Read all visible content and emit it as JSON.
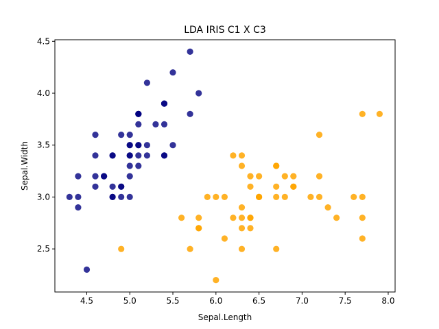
{
  "chart_data": {
    "type": "scatter",
    "title": "LDA IRIS C1 X C3",
    "xlabel": "Sepal.Length",
    "ylabel": "Sepal.Width",
    "xlim": [
      4.13,
      8.08
    ],
    "ylim": [
      2.085,
      4.515
    ],
    "xticks": [
      4.5,
      5.0,
      5.5,
      6.0,
      6.5,
      7.0,
      7.5,
      8.0
    ],
    "yticks": [
      2.5,
      3.0,
      3.5,
      4.0,
      4.5
    ],
    "grid": false,
    "legend": "none",
    "series": [
      {
        "color": "#000080",
        "alpha": 0.8,
        "points": [
          [
            5.1,
            3.5
          ],
          [
            4.9,
            3.0
          ],
          [
            4.7,
            3.2
          ],
          [
            4.6,
            3.1
          ],
          [
            5.0,
            3.6
          ],
          [
            5.4,
            3.9
          ],
          [
            4.6,
            3.4
          ],
          [
            5.0,
            3.4
          ],
          [
            4.4,
            2.9
          ],
          [
            4.9,
            3.1
          ],
          [
            5.4,
            3.7
          ],
          [
            4.8,
            3.4
          ],
          [
            4.8,
            3.0
          ],
          [
            4.3,
            3.0
          ],
          [
            5.8,
            4.0
          ],
          [
            5.7,
            4.4
          ],
          [
            5.4,
            3.9
          ],
          [
            5.1,
            3.5
          ],
          [
            5.7,
            3.8
          ],
          [
            5.1,
            3.8
          ],
          [
            5.4,
            3.4
          ],
          [
            5.1,
            3.7
          ],
          [
            4.6,
            3.6
          ],
          [
            5.1,
            3.3
          ],
          [
            4.8,
            3.4
          ],
          [
            5.0,
            3.0
          ],
          [
            5.0,
            3.4
          ],
          [
            5.2,
            3.5
          ],
          [
            5.2,
            3.4
          ],
          [
            4.7,
            3.2
          ],
          [
            4.8,
            3.1
          ],
          [
            5.4,
            3.4
          ],
          [
            5.2,
            4.1
          ],
          [
            5.5,
            4.2
          ],
          [
            4.9,
            3.1
          ],
          [
            5.0,
            3.2
          ],
          [
            5.5,
            3.5
          ],
          [
            4.9,
            3.6
          ],
          [
            4.4,
            3.0
          ],
          [
            5.1,
            3.4
          ],
          [
            5.0,
            3.5
          ],
          [
            4.5,
            2.3
          ],
          [
            4.4,
            3.2
          ],
          [
            5.0,
            3.5
          ],
          [
            5.1,
            3.8
          ],
          [
            4.8,
            3.0
          ],
          [
            5.1,
            3.8
          ],
          [
            4.6,
            3.2
          ],
          [
            5.3,
            3.7
          ],
          [
            5.0,
            3.3
          ]
        ]
      },
      {
        "color": "#FFA500",
        "alpha": 0.85,
        "points": [
          [
            6.3,
            3.3
          ],
          [
            5.8,
            2.7
          ],
          [
            7.1,
            3.0
          ],
          [
            6.3,
            2.9
          ],
          [
            6.5,
            3.0
          ],
          [
            7.6,
            3.0
          ],
          [
            4.9,
            2.5
          ],
          [
            7.3,
            2.9
          ],
          [
            6.7,
            2.5
          ],
          [
            7.2,
            3.6
          ],
          [
            6.5,
            3.2
          ],
          [
            6.4,
            2.7
          ],
          [
            6.8,
            3.0
          ],
          [
            5.7,
            2.5
          ],
          [
            5.8,
            2.8
          ],
          [
            6.4,
            3.2
          ],
          [
            6.5,
            3.0
          ],
          [
            7.7,
            3.8
          ],
          [
            7.7,
            2.6
          ],
          [
            6.0,
            2.2
          ],
          [
            6.9,
            3.2
          ],
          [
            5.6,
            2.8
          ],
          [
            7.7,
            2.8
          ],
          [
            6.3,
            2.7
          ],
          [
            6.7,
            3.3
          ],
          [
            7.2,
            3.2
          ],
          [
            6.2,
            2.8
          ],
          [
            6.1,
            3.0
          ],
          [
            6.4,
            2.8
          ],
          [
            7.2,
            3.0
          ],
          [
            7.4,
            2.8
          ],
          [
            7.9,
            3.8
          ],
          [
            6.4,
            2.8
          ],
          [
            6.3,
            2.8
          ],
          [
            6.1,
            2.6
          ],
          [
            7.7,
            3.0
          ],
          [
            6.3,
            3.4
          ],
          [
            6.4,
            3.1
          ],
          [
            6.0,
            3.0
          ],
          [
            6.9,
            3.1
          ],
          [
            6.7,
            3.1
          ],
          [
            6.9,
            3.1
          ],
          [
            5.8,
            2.7
          ],
          [
            6.8,
            3.2
          ],
          [
            6.7,
            3.3
          ],
          [
            6.7,
            3.0
          ],
          [
            6.3,
            2.5
          ],
          [
            6.5,
            3.0
          ],
          [
            6.2,
            3.4
          ],
          [
            5.9,
            3.0
          ]
        ]
      }
    ]
  }
}
